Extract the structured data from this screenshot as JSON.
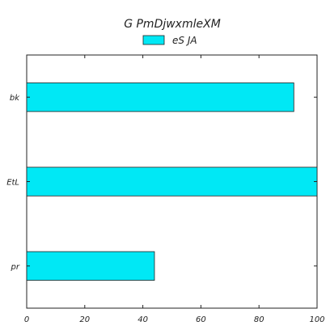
{
  "chart_data": {
    "type": "bar",
    "orientation": "horizontal",
    "title": "G  PmDjwxmleXM",
    "xlabel": "",
    "ylabel": "",
    "categories": [
      "bk",
      "EtL",
      "pr"
    ],
    "series": [
      {
        "name": "eS JA",
        "values": [
          92,
          100,
          44
        ],
        "color": "#00e8f5"
      }
    ],
    "xlim": [
      0,
      100
    ],
    "xticks": [
      0,
      20,
      40,
      60,
      80,
      100
    ],
    "grid": false,
    "legend_position": "top-center"
  }
}
